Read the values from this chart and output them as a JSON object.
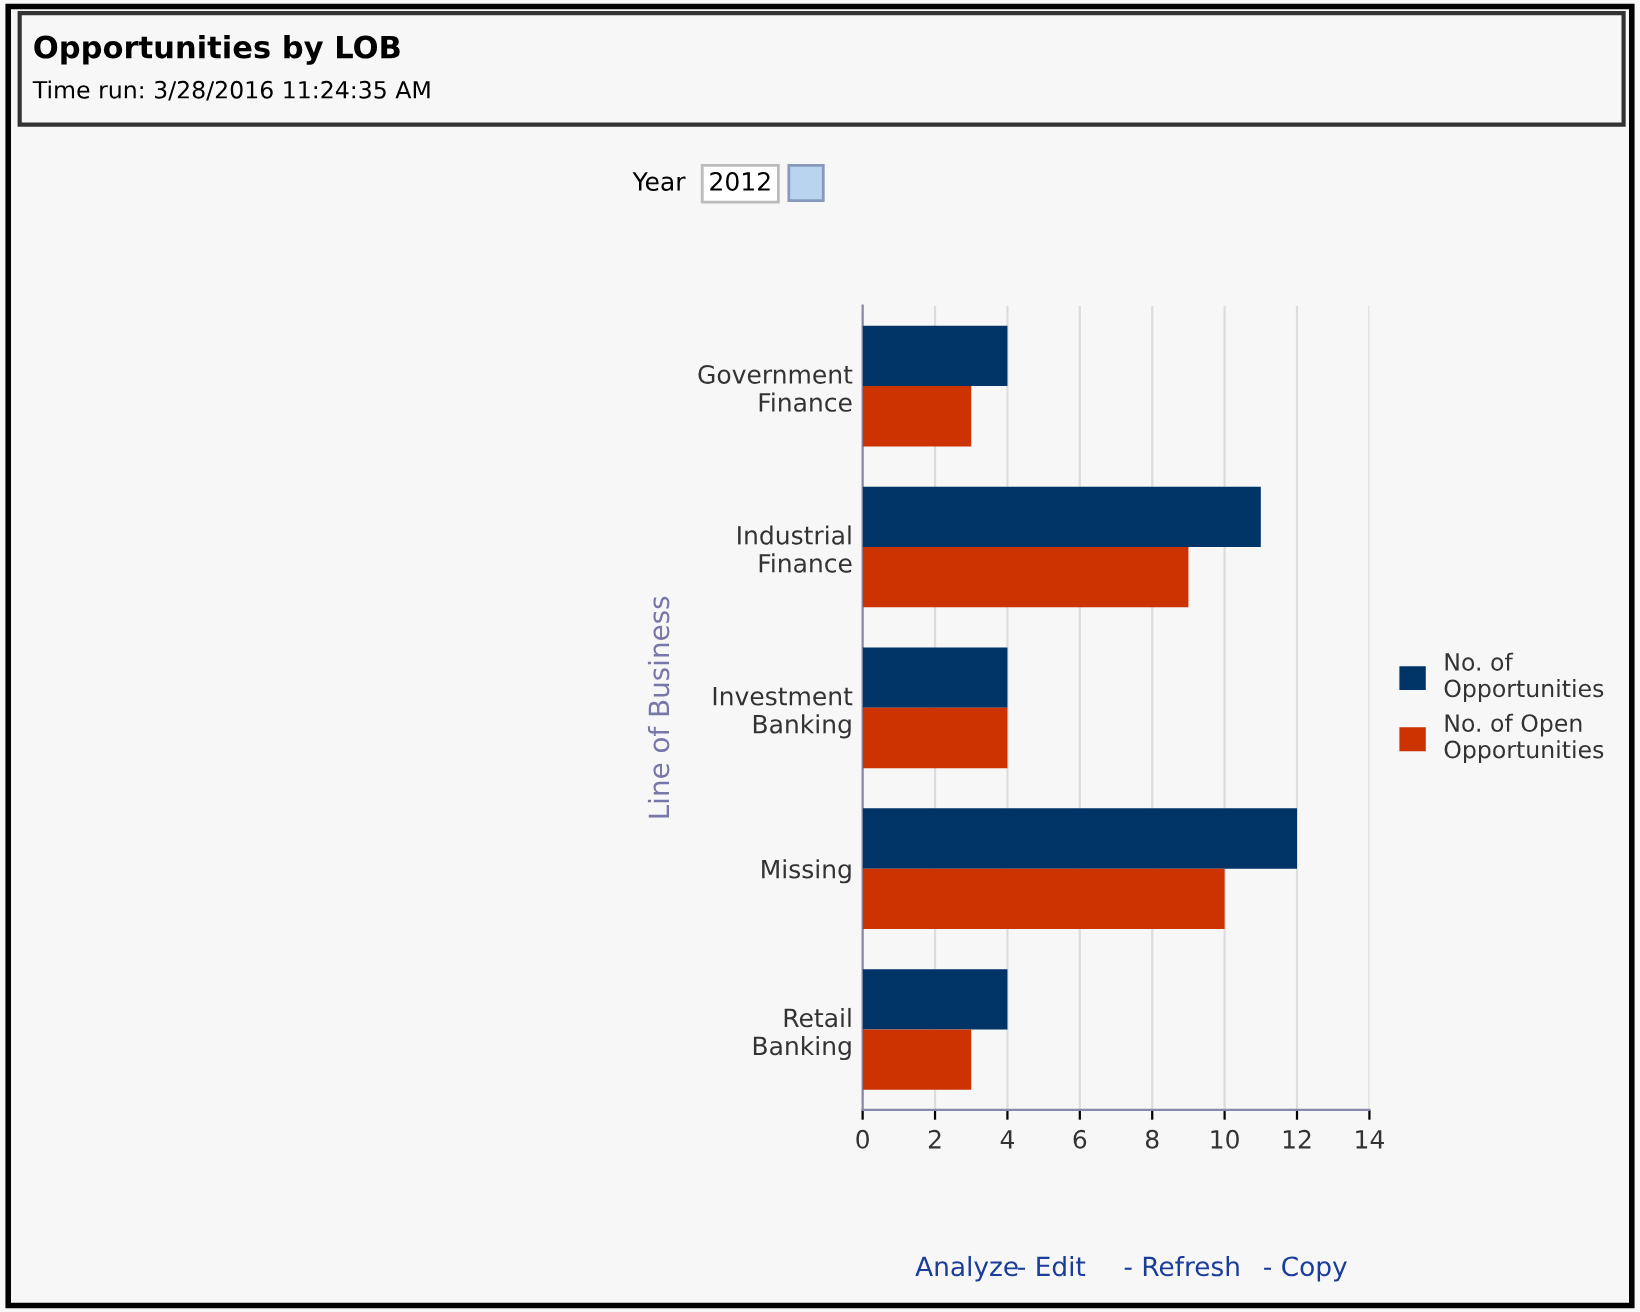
{
  "chart_data": {
    "type": "bar",
    "orientation": "horizontal",
    "title": "Opportunities by LOB",
    "subtitle": "Time run: 3/28/2016 11:24:35 AM",
    "ylabel": "Line of Business",
    "categories": [
      "Government\nFinance",
      "Industrial\nFinance",
      "Investment\nBanking",
      "Missing",
      "Retail\nBanking"
    ],
    "series": [
      {
        "name": "No. of\nOpportunities",
        "color": "#003366",
        "values": [
          4,
          11,
          4,
          12,
          4
        ]
      },
      {
        "name": "No. of Open\nOpportunities",
        "color": "#cc3300",
        "values": [
          3,
          9,
          4,
          10,
          3
        ]
      }
    ],
    "xlim": [
      0,
      14
    ],
    "xticks": [
      0,
      2,
      4,
      6,
      8,
      10,
      12,
      14
    ],
    "grid": "x",
    "legend": "right",
    "annotations": [
      "Year",
      "2012",
      "Analyze",
      "- Edit",
      "- Refresh",
      "- Copy"
    ]
  }
}
